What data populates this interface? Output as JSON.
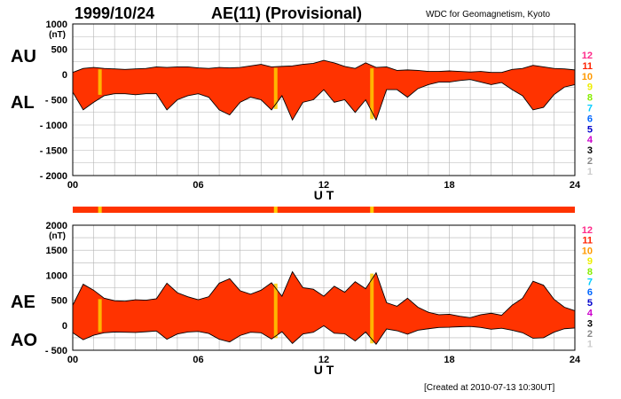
{
  "header": {
    "date": "1999/10/24",
    "title": "AE(11) (Provisional)",
    "institution": "WDC for Geomagnetism, Kyoto"
  },
  "footer": "[Created at 2010-07-13 10:30UT]",
  "colors": {
    "fill": "#ff3300",
    "outline": "#000000",
    "grid": "#b4b4b4",
    "highlight": "#ffcc00"
  },
  "station_scale": [
    {
      "label": "12",
      "color": "#ff2a8a"
    },
    {
      "label": "11",
      "color": "#ff2200"
    },
    {
      "label": "10",
      "color": "#ff9900"
    },
    {
      "label": "9",
      "color": "#eeee00"
    },
    {
      "label": "8",
      "color": "#88ee00"
    },
    {
      "label": "7",
      "color": "#00ccff"
    },
    {
      "label": "6",
      "color": "#0066ff"
    },
    {
      "label": "5",
      "color": "#0000cc"
    },
    {
      "label": "4",
      "color": "#cc00cc"
    },
    {
      "label": "3",
      "color": "#000000"
    },
    {
      "label": "2",
      "color": "#888888"
    },
    {
      "label": "1",
      "color": "#cccccc"
    }
  ],
  "chart_data": [
    {
      "type": "area",
      "panel": "AU/AL",
      "series_labels": [
        "AU",
        "AL"
      ],
      "unit_label": "(nT)",
      "xlabel": "U T",
      "xlim": [
        0,
        24
      ],
      "x_ticks": [
        "00",
        "06",
        "12",
        "18",
        "24"
      ],
      "ylim": [
        -2000,
        1000
      ],
      "y_ticks": [
        "1000",
        "500",
        "0",
        "- 500",
        "- 1000",
        "- 1500",
        "- 2000"
      ],
      "grid": true,
      "hours": [
        0,
        0.5,
        1,
        1.5,
        2,
        2.5,
        3,
        3.5,
        4,
        4.5,
        5,
        5.5,
        6,
        6.5,
        7,
        7.5,
        8,
        8.5,
        9,
        9.5,
        10,
        10.5,
        11,
        11.5,
        12,
        12.5,
        13,
        13.5,
        14,
        14.5,
        15,
        15.5,
        16,
        16.5,
        17,
        17.5,
        18,
        18.5,
        19,
        19.5,
        20,
        20.5,
        21,
        21.5,
        22,
        22.5,
        23,
        23.5,
        24
      ],
      "AU": [
        40,
        120,
        140,
        120,
        110,
        100,
        110,
        120,
        150,
        140,
        150,
        150,
        130,
        120,
        140,
        130,
        140,
        170,
        200,
        150,
        160,
        170,
        200,
        220,
        280,
        230,
        160,
        120,
        230,
        140,
        150,
        80,
        90,
        80,
        60,
        60,
        70,
        60,
        50,
        60,
        40,
        40,
        100,
        120,
        180,
        150,
        120,
        110,
        90
      ],
      "AL": [
        -350,
        -700,
        -550,
        -420,
        -380,
        -380,
        -400,
        -380,
        -380,
        -700,
        -500,
        -420,
        -380,
        -450,
        -700,
        -800,
        -550,
        -450,
        -500,
        -700,
        -420,
        -900,
        -550,
        -500,
        -300,
        -550,
        -500,
        -750,
        -500,
        -900,
        -300,
        -300,
        -450,
        -280,
        -200,
        -150,
        -150,
        -120,
        -100,
        -150,
        -200,
        -160,
        -300,
        -420,
        -700,
        -650,
        -400,
        -250,
        -200
      ],
      "highlight_hours": [
        1.3,
        9.7,
        14.3
      ]
    },
    {
      "type": "area",
      "panel": "AE/AO",
      "series_labels": [
        "AE",
        "AO"
      ],
      "unit_label": "(nT)",
      "xlabel": "U T",
      "xlim": [
        0,
        24
      ],
      "x_ticks": [
        "00",
        "06",
        "12",
        "18",
        "24"
      ],
      "ylim": [
        -500,
        2000
      ],
      "y_ticks": [
        "2000",
        "1500",
        "1000",
        "500",
        "0",
        "- 500"
      ],
      "grid": true,
      "hours": [
        0,
        0.5,
        1,
        1.5,
        2,
        2.5,
        3,
        3.5,
        4,
        4.5,
        5,
        5.5,
        6,
        6.5,
        7,
        7.5,
        8,
        8.5,
        9,
        9.5,
        10,
        10.5,
        11,
        11.5,
        12,
        12.5,
        13,
        13.5,
        14,
        14.5,
        15,
        15.5,
        16,
        16.5,
        17,
        17.5,
        18,
        18.5,
        19,
        19.5,
        20,
        20.5,
        21,
        21.5,
        22,
        22.5,
        23,
        23.5,
        24
      ],
      "AE": [
        400,
        820,
        700,
        540,
        490,
        480,
        510,
        500,
        530,
        840,
        650,
        570,
        510,
        570,
        840,
        930,
        690,
        620,
        700,
        850,
        580,
        1070,
        750,
        720,
        580,
        780,
        660,
        870,
        730,
        1050,
        450,
        380,
        540,
        360,
        260,
        210,
        220,
        180,
        150,
        210,
        240,
        200,
        400,
        540,
        880,
        800,
        520,
        360,
        290
      ],
      "AO": [
        -150,
        -290,
        -200,
        -150,
        -135,
        -140,
        -145,
        -130,
        -115,
        -280,
        -175,
        -135,
        -125,
        -165,
        -280,
        -335,
        -205,
        -140,
        -150,
        -275,
        -130,
        -365,
        -175,
        -140,
        -10,
        -160,
        -170,
        -315,
        -135,
        -380,
        -75,
        -110,
        -180,
        -100,
        -70,
        -45,
        -40,
        -30,
        -25,
        -45,
        -80,
        -60,
        -100,
        -150,
        -260,
        -250,
        -140,
        -70,
        -55
      ],
      "highlight_hours": [
        1.3,
        9.7,
        14.3
      ]
    }
  ]
}
